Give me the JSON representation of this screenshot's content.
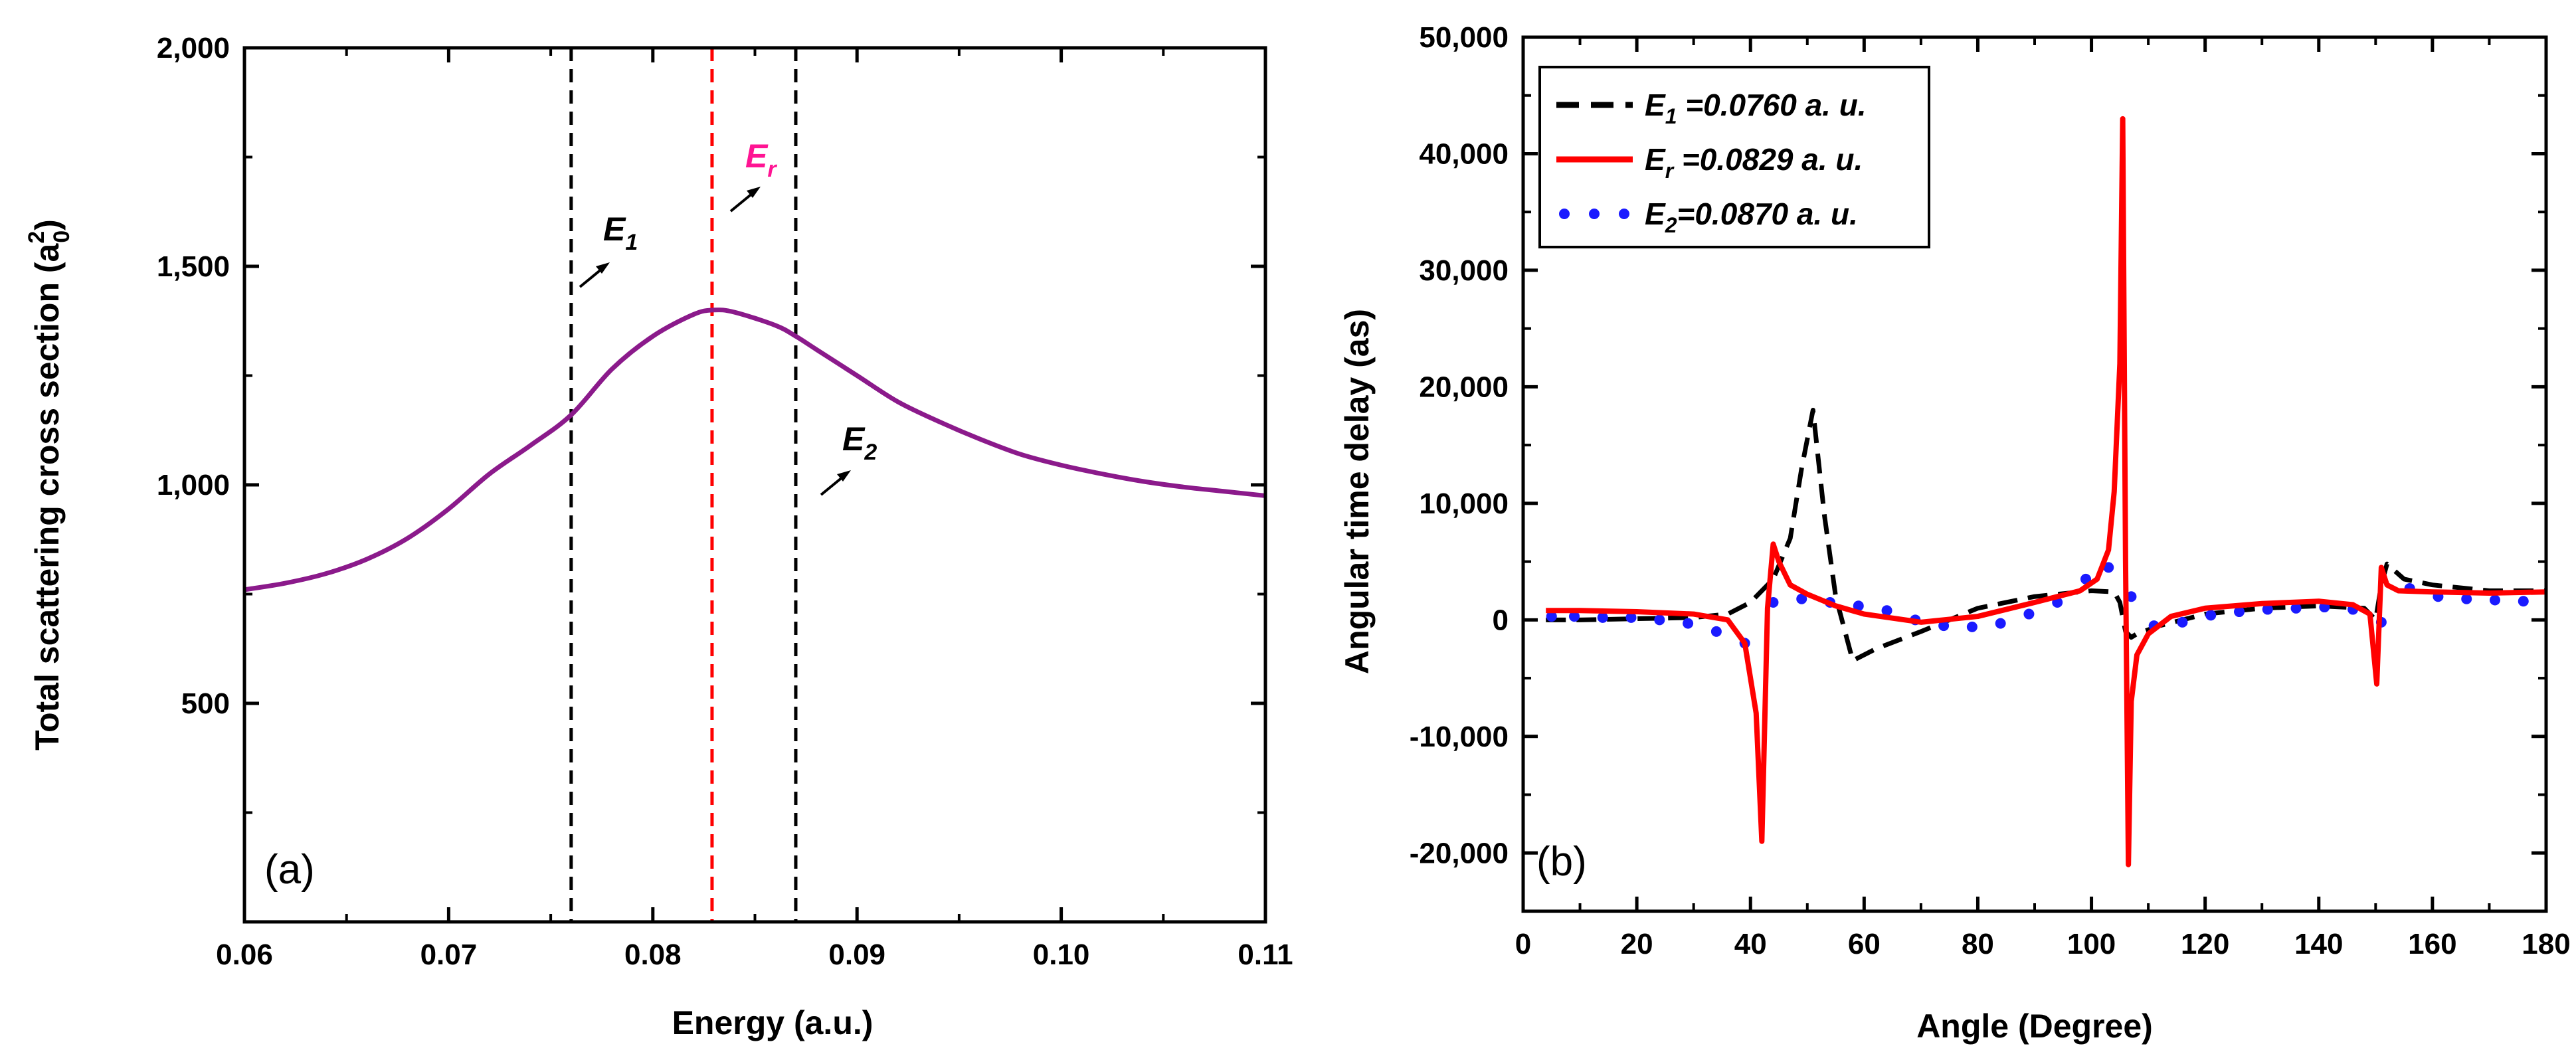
{
  "colors": {
    "purple_curve": "#8B1A8B",
    "red": "#ff0000",
    "black": "#000000",
    "blue": "#1a1aff",
    "pink": "#ff1493"
  },
  "chart_data": [
    {
      "type": "line",
      "panel_label": "(a)",
      "xlabel": "Energy (a.u.)",
      "ylabel_main": "Total scattering cross section (a",
      "ylabel_sup": "2",
      "ylabel_sub": "0",
      "ylabel_close": ")",
      "xlim": [
        0.06,
        0.11
      ],
      "ylim": [
        0,
        2000
      ],
      "xticks": [
        0.06,
        0.07,
        0.08,
        0.09,
        0.1,
        0.11
      ],
      "xtick_labels": [
        "0.06",
        "0.07",
        "0.08",
        "0.09",
        "0.10",
        "0.11"
      ],
      "yticks": [
        500,
        1000,
        1500,
        2000
      ],
      "ytick_labels": [
        "500",
        "1,000",
        "1,500",
        "2,000"
      ],
      "series": [
        {
          "name": "Total scattering cross section",
          "x": [
            0.06,
            0.062,
            0.064,
            0.066,
            0.068,
            0.07,
            0.072,
            0.074,
            0.076,
            0.078,
            0.08,
            0.082,
            0.083,
            0.084,
            0.086,
            0.087,
            0.088,
            0.09,
            0.092,
            0.094,
            0.096,
            0.098,
            0.1,
            0.102,
            0.104,
            0.106,
            0.108,
            0.11
          ],
          "y": [
            760,
            775,
            797,
            830,
            878,
            945,
            1025,
            1090,
            1160,
            1265,
            1340,
            1390,
            1400,
            1395,
            1365,
            1340,
            1310,
            1250,
            1190,
            1145,
            1105,
            1070,
            1045,
            1025,
            1008,
            995,
            985,
            975
          ]
        }
      ],
      "vlines": [
        {
          "name": "E1",
          "x": 0.076,
          "style": "dashed",
          "color": "black"
        },
        {
          "name": "Er",
          "x": 0.0829,
          "style": "dashed",
          "color": "red"
        },
        {
          "name": "E2",
          "x": 0.087,
          "style": "dashed",
          "color": "black"
        }
      ],
      "annotations": [
        {
          "text": "E",
          "sub": "1"
        },
        {
          "text": "E",
          "sub": "r"
        },
        {
          "text": "E",
          "sub": "2"
        }
      ]
    },
    {
      "type": "line",
      "panel_label": "(b)",
      "xlabel": "Angle (Degree)",
      "ylabel": "Angular time delay (as)",
      "xlim": [
        0,
        180
      ],
      "ylim": [
        -25000,
        50000
      ],
      "xticks": [
        0,
        20,
        40,
        60,
        80,
        100,
        120,
        140,
        160,
        180
      ],
      "xtick_labels": [
        "0",
        "20",
        "40",
        "60",
        "80",
        "100",
        "120",
        "140",
        "160",
        "180"
      ],
      "yticks": [
        -20000,
        -10000,
        0,
        10000,
        20000,
        30000,
        40000,
        50000
      ],
      "ytick_labels": [
        "-20,000",
        "-10,000",
        "0",
        "10,000",
        "20,000",
        "30,000",
        "40,000",
        "50,000"
      ],
      "legend_position": "top-left",
      "series": [
        {
          "name": "E1",
          "legend_main": "E",
          "legend_sub": "1",
          "legend_rest": " =0.0760 a. u.",
          "style": "dashed",
          "color": "black",
          "x": [
            4,
            10,
            20,
            30,
            36,
            40,
            44,
            47,
            49,
            51,
            53,
            55,
            58,
            62,
            70,
            80,
            90,
            100,
            104,
            105,
            106,
            107,
            108,
            112,
            120,
            130,
            140,
            148,
            150,
            151,
            152,
            155,
            160,
            170,
            180
          ],
          "y": [
            0,
            0,
            100,
            200,
            500,
            1500,
            3500,
            7000,
            13000,
            18000,
            9000,
            2000,
            -3500,
            -2500,
            -1000,
            1000,
            2000,
            2500,
            2400,
            1500,
            -1000,
            -1500,
            -1200,
            -500,
            500,
            1000,
            1200,
            1000,
            0,
            3000,
            4800,
            3500,
            3000,
            2500,
            2500
          ]
        },
        {
          "name": "Er",
          "legend_main": "E",
          "legend_sub": "r",
          "legend_rest": " =0.0829 a. u.",
          "style": "solid",
          "color": "red",
          "x": [
            4,
            10,
            20,
            30,
            36,
            39,
            41,
            42,
            43,
            44,
            45,
            47,
            50,
            55,
            60,
            70,
            80,
            90,
            98,
            101,
            103,
            104,
            105,
            105.5,
            106,
            106.5,
            107,
            108,
            110,
            114,
            120,
            130,
            140,
            146,
            149,
            150.2,
            151,
            152,
            154,
            160,
            170,
            180
          ],
          "y": [
            800,
            800,
            700,
            500,
            0,
            -2000,
            -8000,
            -19000,
            1000,
            6500,
            5000,
            3000,
            2200,
            1200,
            500,
            -200,
            300,
            1500,
            2500,
            3500,
            6000,
            11000,
            22000,
            43000,
            5000,
            -21000,
            -7000,
            -3000,
            -1200,
            300,
            1000,
            1400,
            1600,
            1300,
            500,
            -5500,
            4500,
            3000,
            2500,
            2400,
            2300,
            2400
          ]
        },
        {
          "name": "E2",
          "legend_main": "E",
          "legend_sub": "2",
          "legend_rest": "=0.0870 a. u.",
          "style": "dotted",
          "color": "blue",
          "x": [
            5,
            9,
            14,
            19,
            24,
            29,
            34,
            39,
            44,
            49,
            54,
            59,
            64,
            69,
            74,
            79,
            84,
            89,
            94,
            99,
            103,
            107,
            111,
            116,
            121,
            126,
            131,
            136,
            141,
            146,
            151,
            156,
            161,
            166,
            171,
            176
          ],
          "y": [
            300,
            300,
            200,
            200,
            0,
            -300,
            -1000,
            -2000,
            1500,
            1800,
            1500,
            1200,
            800,
            0,
            -500,
            -600,
            -300,
            500,
            1500,
            3500,
            4500,
            2000,
            -500,
            -200,
            400,
            700,
            900,
            1000,
            1100,
            900,
            -200,
            2700,
            2000,
            1800,
            1700,
            1600
          ]
        }
      ]
    }
  ]
}
